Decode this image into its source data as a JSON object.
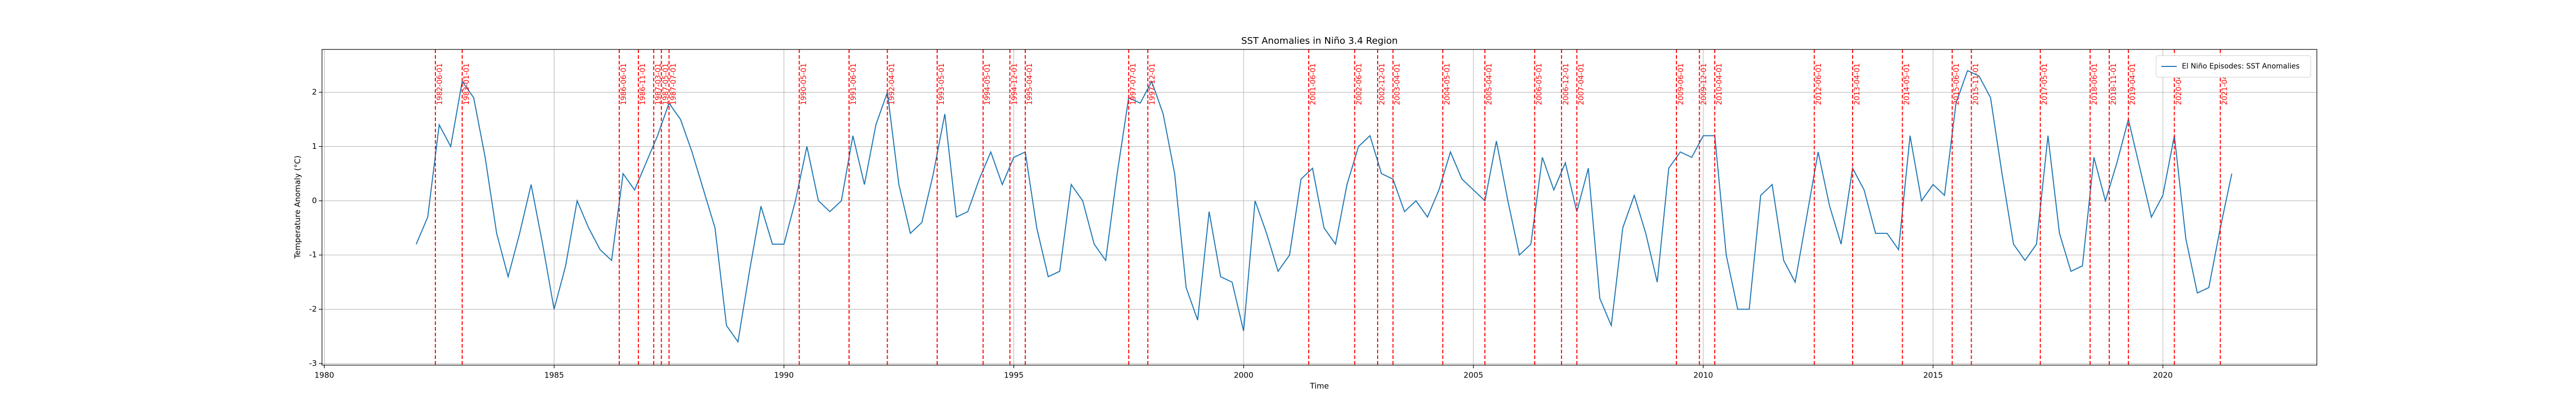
{
  "chart_data": {
    "type": "line",
    "title": "SST Anomalies in Niño 3.4 Region",
    "xlabel": "Time",
    "ylabel": "Temperature Anomaly (°C)",
    "x": [
      1982,
      1982.25,
      1982.5,
      1982.75,
      1983,
      1983.25,
      1983.5,
      1983.75,
      1984,
      1984.25,
      1984.5,
      1984.75,
      1985,
      1985.25,
      1985.5,
      1985.75,
      1986,
      1986.25,
      1986.5,
      1986.75,
      1987,
      1987.25,
      1987.5,
      1987.75,
      1988,
      1988.25,
      1988.5,
      1988.75,
      1989,
      1989.25,
      1989.5,
      1989.75,
      1990,
      1990.25,
      1990.5,
      1990.75,
      1991,
      1991.25,
      1991.5,
      1991.75,
      1992,
      1992.25,
      1992.5,
      1992.75,
      1993,
      1993.25,
      1993.5,
      1993.75,
      1994,
      1994.25,
      1994.5,
      1994.75,
      1995,
      1995.25,
      1995.5,
      1995.75,
      1996,
      1996.25,
      1996.5,
      1996.75,
      1997,
      1997.25,
      1997.5,
      1997.75,
      1998,
      1998.25,
      1998.5,
      1998.75,
      1999,
      1999.25,
      1999.5,
      1999.75,
      2000,
      2000.25,
      2000.5,
      2000.75,
      2001,
      2001.25,
      2001.5,
      2001.75,
      2002,
      2002.25,
      2002.5,
      2002.75,
      2003,
      2003.25,
      2003.5,
      2003.75,
      2004,
      2004.25,
      2004.5,
      2004.75,
      2005,
      2005.25,
      2005.5,
      2005.75,
      2006,
      2006.25,
      2006.5,
      2006.75,
      2007,
      2007.25,
      2007.5,
      2007.75,
      2008,
      2008.25,
      2008.5,
      2008.75,
      2009,
      2009.25,
      2009.5,
      2009.75,
      2010,
      2010.25,
      2010.5,
      2010.75,
      2011,
      2011.25,
      2011.5,
      2011.75,
      2012,
      2012.25,
      2012.5,
      2012.75,
      2013,
      2013.25,
      2013.5,
      2013.75,
      2014,
      2014.25,
      2014.5,
      2014.75,
      2015,
      2015.25,
      2015.5,
      2015.75,
      2016,
      2016.25,
      2016.5,
      2016.75,
      2017,
      2017.25,
      2017.5,
      2017.75,
      2018,
      2018.25,
      2018.5,
      2018.75,
      2019,
      2019.25,
      2019.5,
      2019.75,
      2020,
      2020.25,
      2020.5,
      2020.75,
      2021,
      2021.25,
      2021.5
    ],
    "series": [
      {
        "name": "El Niño Episodes: SST Anomalies",
        "color": "#1f77b4",
        "values": [
          -0.8,
          -0.3,
          1.4,
          1.0,
          2.2,
          1.9,
          0.8,
          -0.6,
          -1.4,
          -0.6,
          0.3,
          -0.8,
          -2.0,
          -1.2,
          0.0,
          -0.5,
          -0.9,
          -1.1,
          0.5,
          0.2,
          0.7,
          1.2,
          1.8,
          1.5,
          0.9,
          0.2,
          -0.5,
          -2.3,
          -2.6,
          -1.3,
          -0.1,
          -0.8,
          -0.8,
          0.0,
          1.0,
          0.0,
          -0.2,
          0.0,
          1.2,
          0.3,
          1.4,
          2.0,
          0.3,
          -0.6,
          -0.4,
          0.5,
          1.6,
          -0.3,
          -0.2,
          0.4,
          0.9,
          0.3,
          0.8,
          0.9,
          -0.5,
          -1.4,
          -1.3,
          0.3,
          0.0,
          -0.8,
          -1.1,
          0.5,
          1.9,
          1.8,
          2.2,
          1.6,
          0.5,
          -1.6,
          -2.2,
          -0.2,
          -1.4,
          -1.5,
          -2.4,
          0.0,
          -0.6,
          -1.3,
          -1.0,
          0.4,
          0.6,
          -0.5,
          -0.8,
          0.3,
          1.0,
          1.2,
          0.5,
          0.4,
          -0.2,
          0.0,
          -0.3,
          0.2,
          0.9,
          0.4,
          0.2,
          0.0,
          1.1,
          0.0,
          -1.0,
          -0.8,
          0.8,
          0.2,
          0.7,
          -0.2,
          0.6,
          -1.8,
          -2.3,
          -0.5,
          0.1,
          -0.6,
          -1.5,
          0.6,
          0.9,
          0.8,
          1.2,
          1.2,
          -1.0,
          -2.0,
          -2.0,
          0.1,
          0.3,
          -1.1,
          -1.5,
          -0.3,
          0.9,
          -0.1,
          -0.8,
          0.6,
          0.2,
          -0.6,
          -0.6,
          -0.9,
          1.2,
          0.0,
          0.3,
          0.1,
          1.8,
          2.4,
          2.3,
          1.9,
          0.5,
          -0.8,
          -1.1,
          -0.8,
          1.2,
          -0.6,
          -1.3,
          -1.2,
          0.8,
          0.0,
          0.7,
          1.5,
          0.6,
          -0.3,
          0.1,
          1.2,
          -0.7,
          -1.7,
          -1.6,
          -0.5,
          0.5
        ]
      }
    ],
    "episodes": {
      "color": "#ff0000",
      "dates": [
        "1982-06-01",
        "1983-01-01",
        "1986-06-01",
        "1986-11-01",
        "1987-03-01",
        "1987-05-01",
        "1987-07-01",
        "1990-05-01",
        "1991-06-01",
        "1992-04-01",
        "1993-05-01",
        "1994-05-01",
        "1994-12-01",
        "1995-04-01",
        "1997-07-01",
        "1997-12-01",
        "2001-06-01",
        "2002-06-01",
        "2002-12-01",
        "2003-04-01",
        "2004-05-01",
        "2005-04-01",
        "2006-05-01",
        "2006-12-01",
        "2007-04-01",
        "2009-06-01",
        "2009-12-01",
        "2010-04-01",
        "2012-06-01",
        "2013-04-01",
        "2014-05-01",
        "2015-06-01",
        "2015-11-01",
        "2017-05-01",
        "2018-06-01",
        "2018-11-01",
        "2019-04-01",
        "2020-04-01",
        "2021-04-01"
      ]
    },
    "xlim": [
      1979.95,
      2023.35
    ],
    "xticks": [
      1980,
      1985,
      1990,
      1995,
      2000,
      2005,
      2010,
      2015,
      2020
    ],
    "ylim": [
      -3.03,
      2.79
    ],
    "yticks": [
      -3,
      -2,
      -1,
      0,
      1,
      2
    ],
    "grid": true,
    "legend": "upper right"
  }
}
